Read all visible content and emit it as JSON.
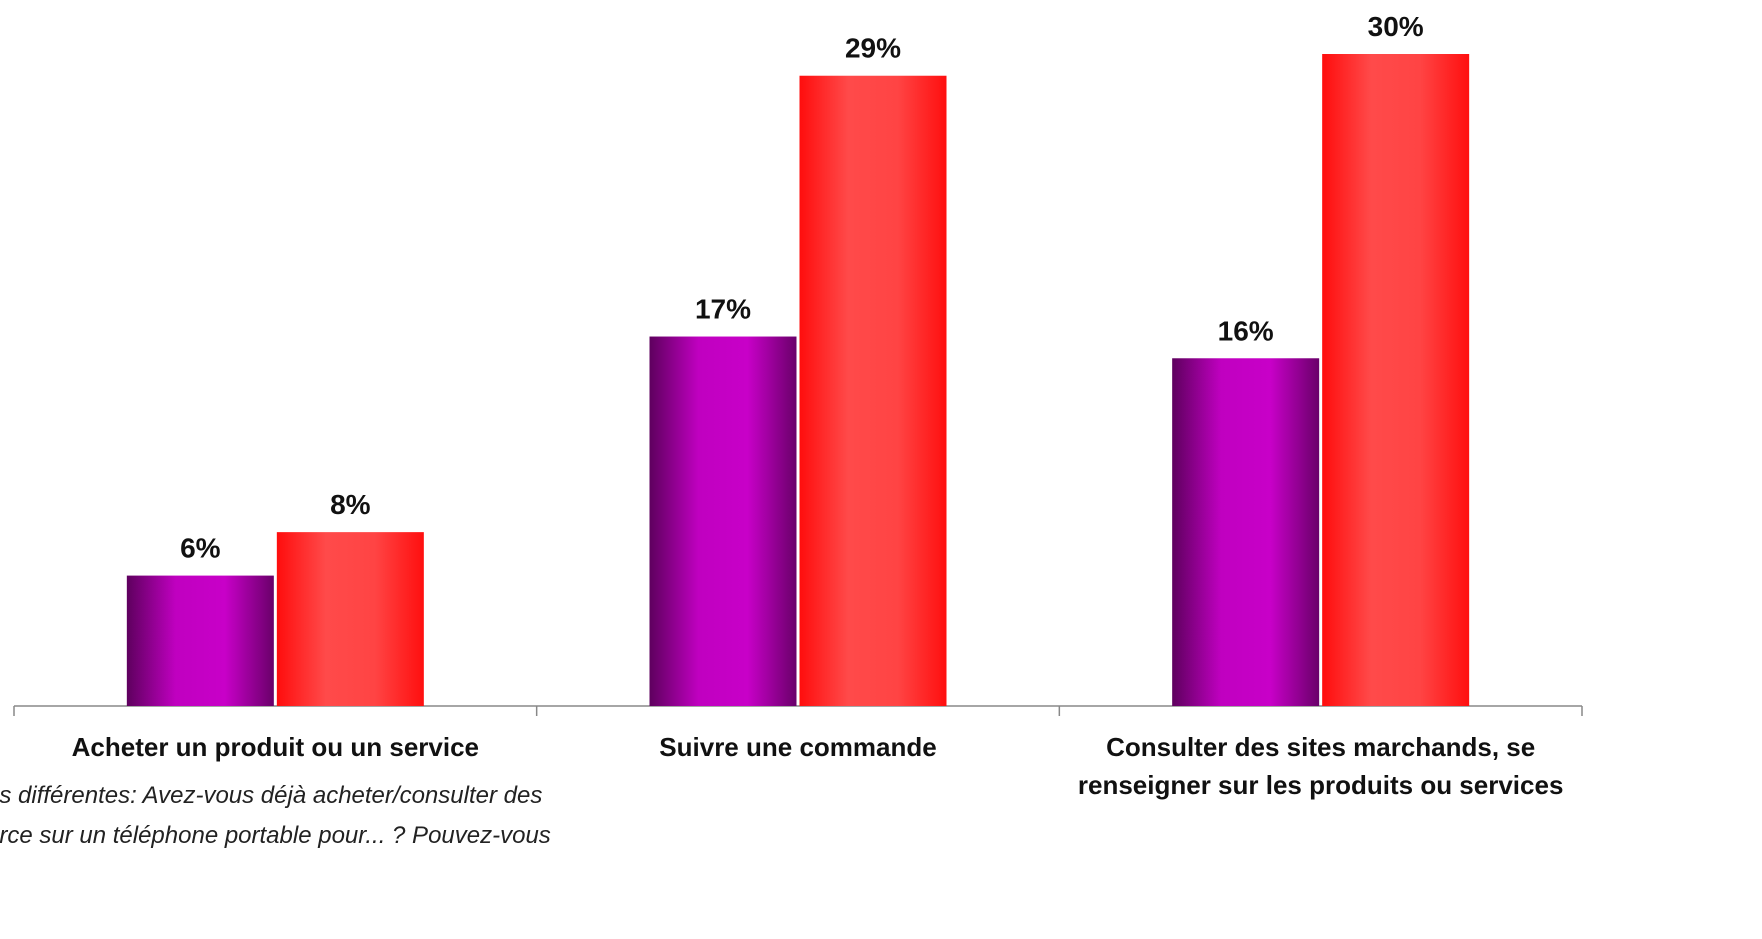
{
  "chart_data": {
    "type": "bar",
    "categories": [
      "Acheter un produit ou un service",
      "Suivre une commande",
      "Consulter des sites marchands, se renseigner sur les produits ou services"
    ],
    "series": [
      {
        "color": "#c800c8",
        "gradient": [
          "#5e005e",
          "#c000c0",
          "#c800c8",
          "#6a006a"
        ],
        "values": [
          6,
          17,
          16
        ],
        "value_labels": [
          "6%",
          "17%",
          "16%"
        ]
      },
      {
        "color": "#ff2020",
        "gradient": [
          "#ff0d0d",
          "#ff4a4a",
          "#ff4444",
          "#ff0f0f"
        ],
        "values": [
          8,
          29,
          30
        ],
        "value_labels": [
          "8%",
          "29%",
          "30%"
        ]
      }
    ],
    "ylim": [
      0,
      30
    ],
    "annotations": [
      "ns différentes: Avez-vous déjà acheter/consulter des",
      "erce sur un téléphone portable pour... ? Pouvez-vous"
    ]
  }
}
